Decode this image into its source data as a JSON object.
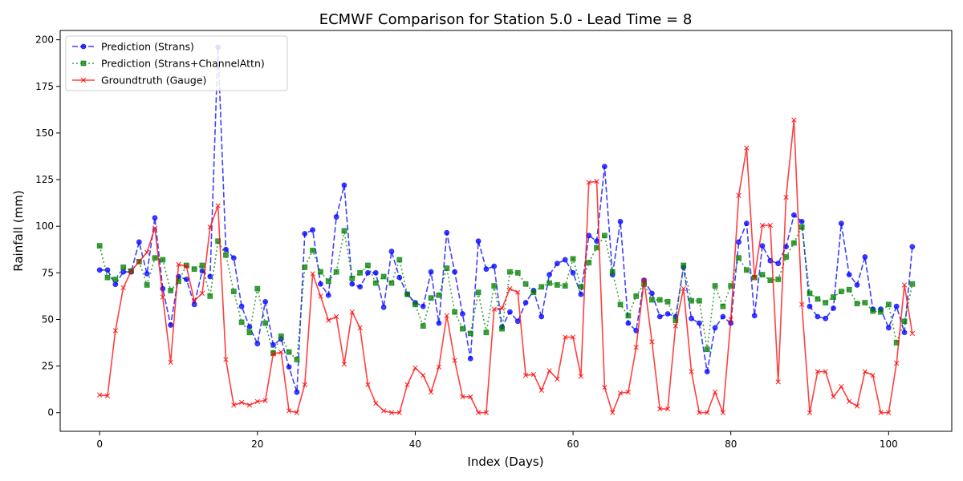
{
  "chart_data": {
    "type": "line",
    "title": "ECMWF Comparison for Station 5.0 - Lead Time = 8",
    "xlabel": "Index (Days)",
    "ylabel": "Rainfall (mm)",
    "xlim": [
      -5,
      108
    ],
    "ylim": [
      -10,
      205
    ],
    "xticks": [
      0,
      20,
      40,
      60,
      80,
      100
    ],
    "yticks": [
      0,
      25,
      50,
      75,
      100,
      125,
      150,
      175,
      200
    ],
    "grid": false,
    "legend_position": "top-left",
    "series": [
      {
        "name": "Prediction (Strans)",
        "color": "#0000ff",
        "line_style": "dashed",
        "marker": "circle",
        "values": [
          76.5,
          76.5,
          68.8,
          75.5,
          75.5,
          91.5,
          74.5,
          104.5,
          66.5,
          47,
          73,
          71.5,
          58,
          76,
          73,
          196,
          87.5,
          83,
          57,
          46,
          37,
          59.5,
          36.3,
          39.5,
          24.5,
          11,
          96,
          98,
          69,
          63,
          105,
          122,
          69,
          67.5,
          75,
          75,
          56.5,
          86.5,
          72.5,
          63.5,
          59,
          57,
          75.5,
          48,
          96.5,
          75.5,
          53,
          29,
          92,
          77,
          78.5,
          46,
          54,
          49,
          59,
          65.5,
          51.5,
          74,
          80,
          82,
          75,
          63.5,
          95,
          92,
          132,
          74,
          102.5,
          48,
          44,
          71,
          64,
          51.5,
          53,
          51.5,
          78,
          50.5,
          48,
          22,
          45.5,
          51.5,
          48,
          91.5,
          101.5,
          52,
          89.5,
          81.5,
          80,
          89,
          106,
          102.5,
          57,
          51.5,
          50.5,
          56,
          101.5,
          74,
          68.5,
          83.5,
          55.5,
          55.5,
          45.5,
          57,
          43,
          89
        ]
      },
      {
        "name": "Prediction (Strans+ChannelAttn)",
        "color": "#008000",
        "line_style": "dotted",
        "marker": "square",
        "values": [
          89.5,
          72.5,
          71.5,
          78,
          76,
          81,
          68.5,
          83,
          82,
          65.5,
          70.5,
          79,
          77,
          79,
          62.5,
          92,
          84.5,
          65,
          48.5,
          43,
          66.5,
          48,
          32,
          41,
          32.5,
          28.5,
          78,
          87,
          75.5,
          70.5,
          75.5,
          97.5,
          72,
          75,
          79,
          69.5,
          73,
          69.5,
          82,
          63.5,
          58,
          46.5,
          61.5,
          63,
          77.5,
          54,
          45,
          42.5,
          64.5,
          43,
          68,
          45,
          75.5,
          75,
          69,
          64.5,
          67.5,
          69.5,
          68.5,
          68,
          82.5,
          67.5,
          80.5,
          88.5,
          95,
          75.5,
          58,
          52,
          62.5,
          69,
          60.5,
          60.5,
          59.5,
          49.5,
          79,
          60,
          60,
          34,
          68,
          57,
          68,
          83,
          76.5,
          72.5,
          74,
          71,
          71.5,
          83.5,
          91,
          99.5,
          64,
          61,
          59,
          62,
          65,
          66,
          58.5,
          59,
          54.5,
          54,
          58,
          37.5,
          49,
          69
        ]
      },
      {
        "name": "Groundtruth (Gauge)",
        "color": "#ff0000",
        "line_style": "solid",
        "marker": "x",
        "values": [
          9.5,
          9,
          44,
          67,
          76,
          81,
          86,
          99,
          62,
          27,
          79.5,
          78.5,
          60,
          64,
          99.5,
          111,
          28.5,
          4,
          5.5,
          4,
          6,
          6.5,
          31.5,
          32.5,
          1,
          0,
          15,
          74.5,
          62.5,
          49.5,
          51.5,
          26,
          54,
          45.5,
          15,
          5,
          1,
          0,
          0,
          15,
          24,
          20,
          11,
          24.5,
          52,
          28,
          8.5,
          8.5,
          0,
          0,
          55.5,
          56,
          66.5,
          64.5,
          20,
          20.5,
          12,
          22.5,
          18,
          40.5,
          40.5,
          19.5,
          123.5,
          124,
          13.5,
          0,
          10.5,
          11,
          35,
          71,
          38,
          2,
          2,
          46.5,
          66.5,
          22,
          0,
          0,
          11,
          0,
          50,
          116.5,
          142,
          72.5,
          100.5,
          100.5,
          16.5,
          115.5,
          157,
          58,
          0,
          22,
          22,
          8.5,
          14,
          6,
          3.5,
          22,
          20,
          0,
          0,
          26.5,
          68.5,
          42.5
        ]
      }
    ]
  }
}
